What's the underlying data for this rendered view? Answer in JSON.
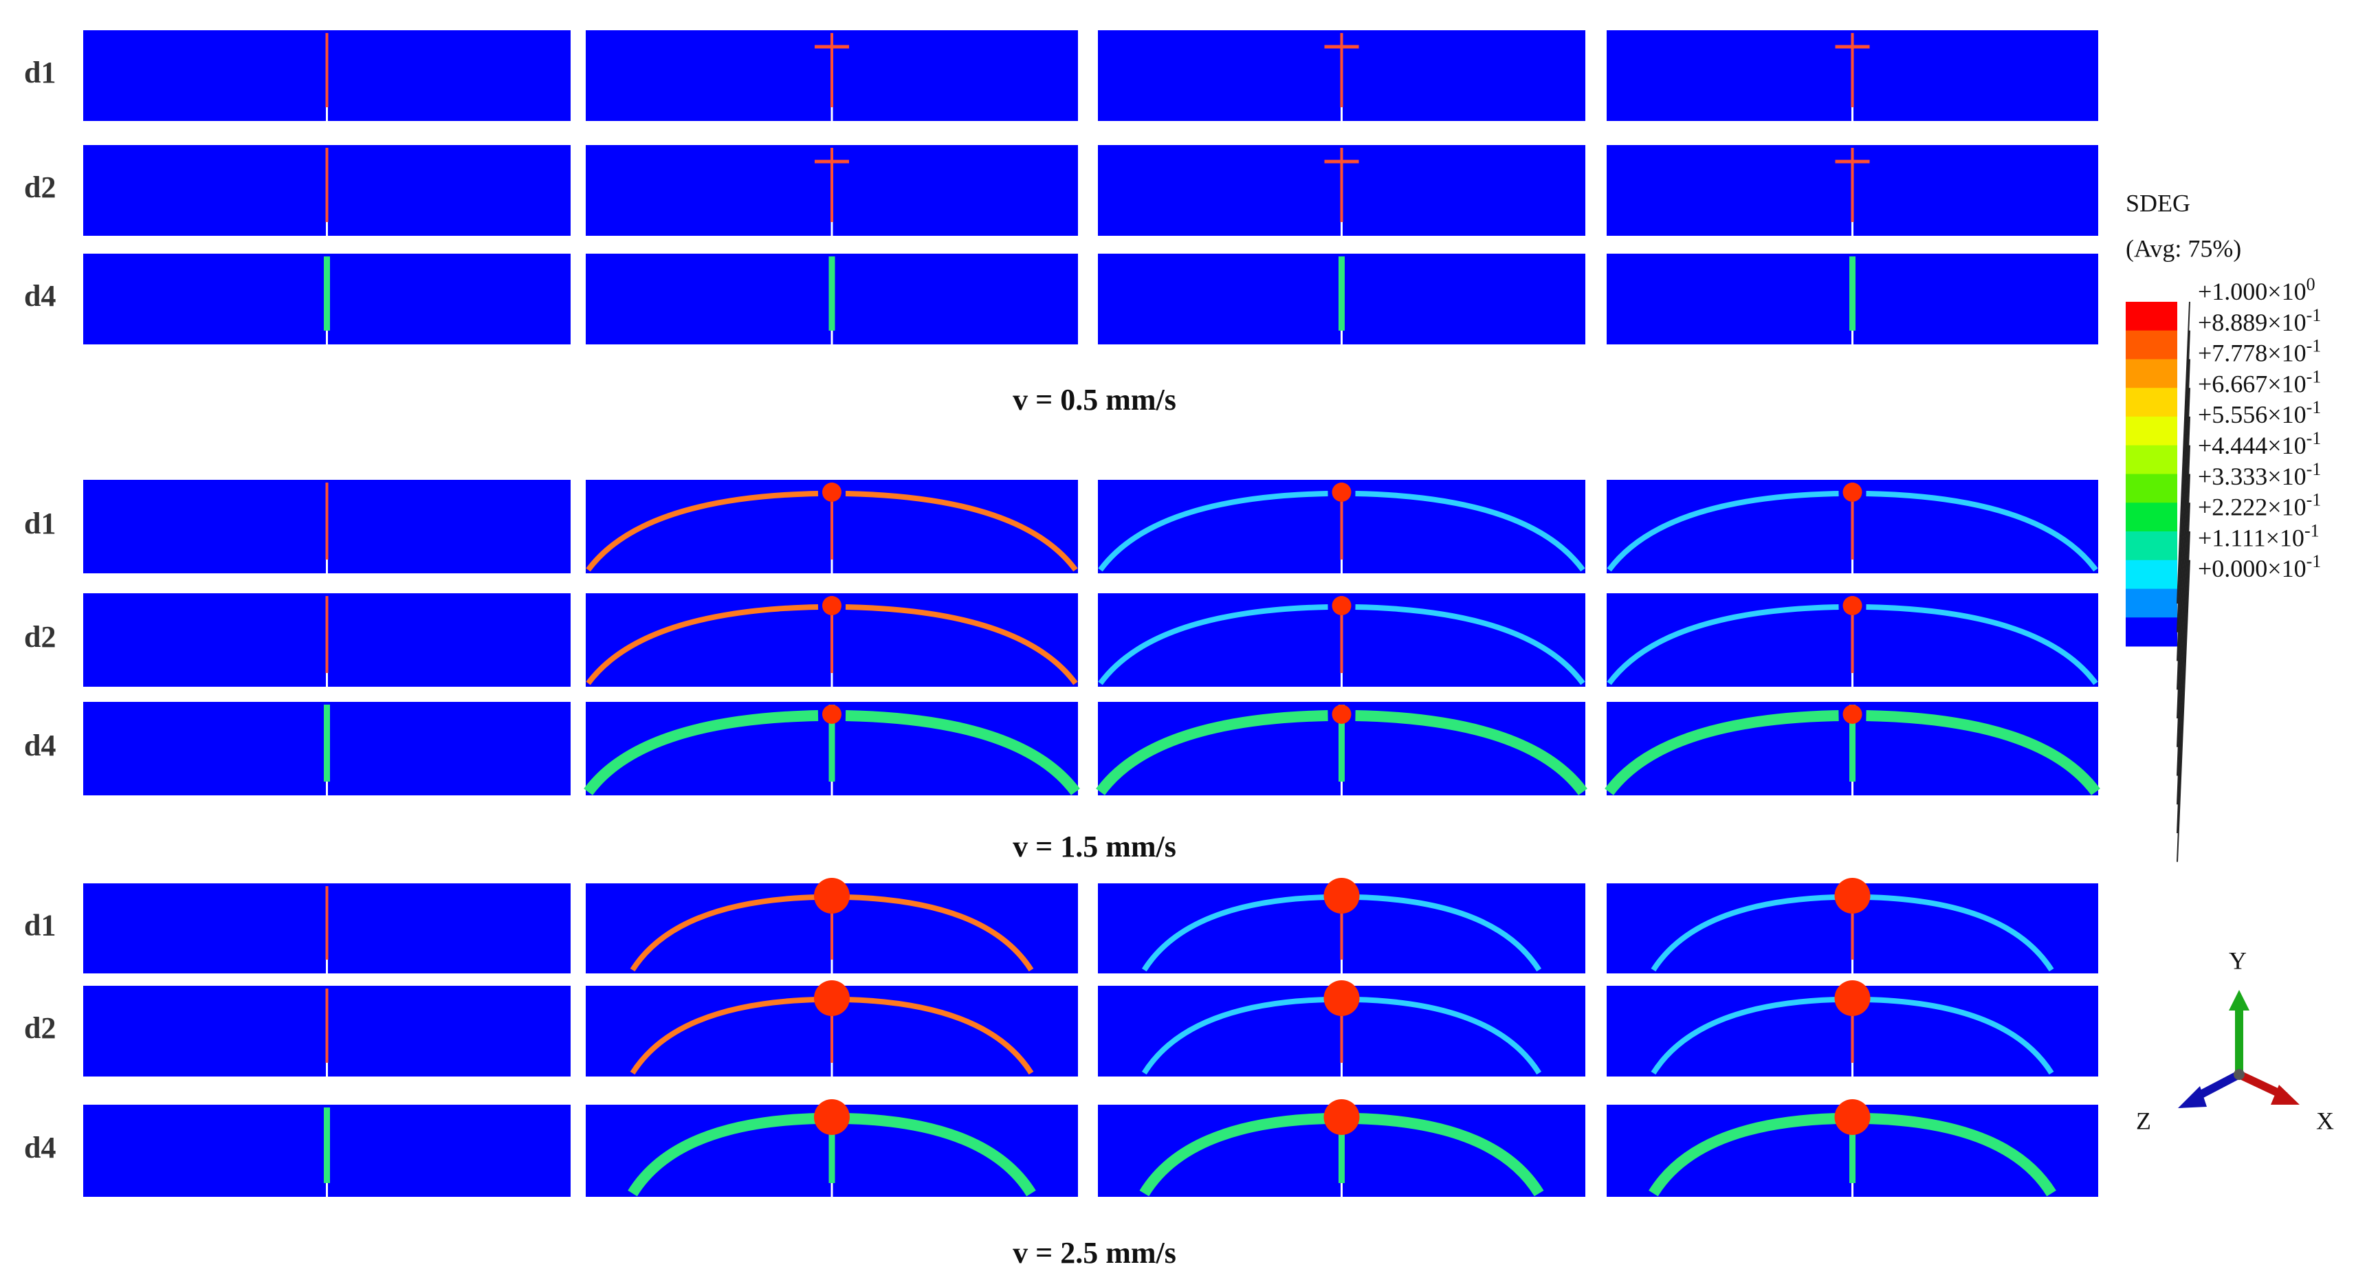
{
  "groups": [
    {
      "label": "v = 0.5  mm/s",
      "rows": [
        "d1",
        "d2",
        "d4"
      ]
    },
    {
      "label": "v = 1.5  mm/s",
      "rows": [
        "d1",
        "d2",
        "d4"
      ]
    },
    {
      "label": "v = 2.5  mm/s",
      "rows": [
        "d1",
        "d2",
        "d4"
      ]
    }
  ],
  "legend": {
    "title": "SDEG",
    "subtitle": "(Avg: 75%)",
    "levels": [
      {
        "mantissa": "+1.000×10",
        "exponent": "0"
      },
      {
        "mantissa": "+8.889×10",
        "exponent": "-1"
      },
      {
        "mantissa": "+7.778×10",
        "exponent": "-1"
      },
      {
        "mantissa": "+6.667×10",
        "exponent": "-1"
      },
      {
        "mantissa": "+5.556×10",
        "exponent": "-1"
      },
      {
        "mantissa": "+4.444×10",
        "exponent": "-1"
      },
      {
        "mantissa": "+3.333×10",
        "exponent": "-1"
      },
      {
        "mantissa": "+2.222×10",
        "exponent": "-1"
      },
      {
        "mantissa": "+1.111×10",
        "exponent": "-1"
      },
      {
        "mantissa": "+0.000×10",
        "exponent": "-1"
      }
    ],
    "colors": [
      "#ff0000",
      "#ff5a00",
      "#ff9a00",
      "#ffd800",
      "#e8ff00",
      "#a8ff00",
      "#5cf000",
      "#00e838",
      "#00e6a0",
      "#00e8ff",
      "#0090ff",
      "#0000ff"
    ]
  },
  "triad": {
    "y": "Y",
    "z": "Z",
    "x": "X"
  }
}
